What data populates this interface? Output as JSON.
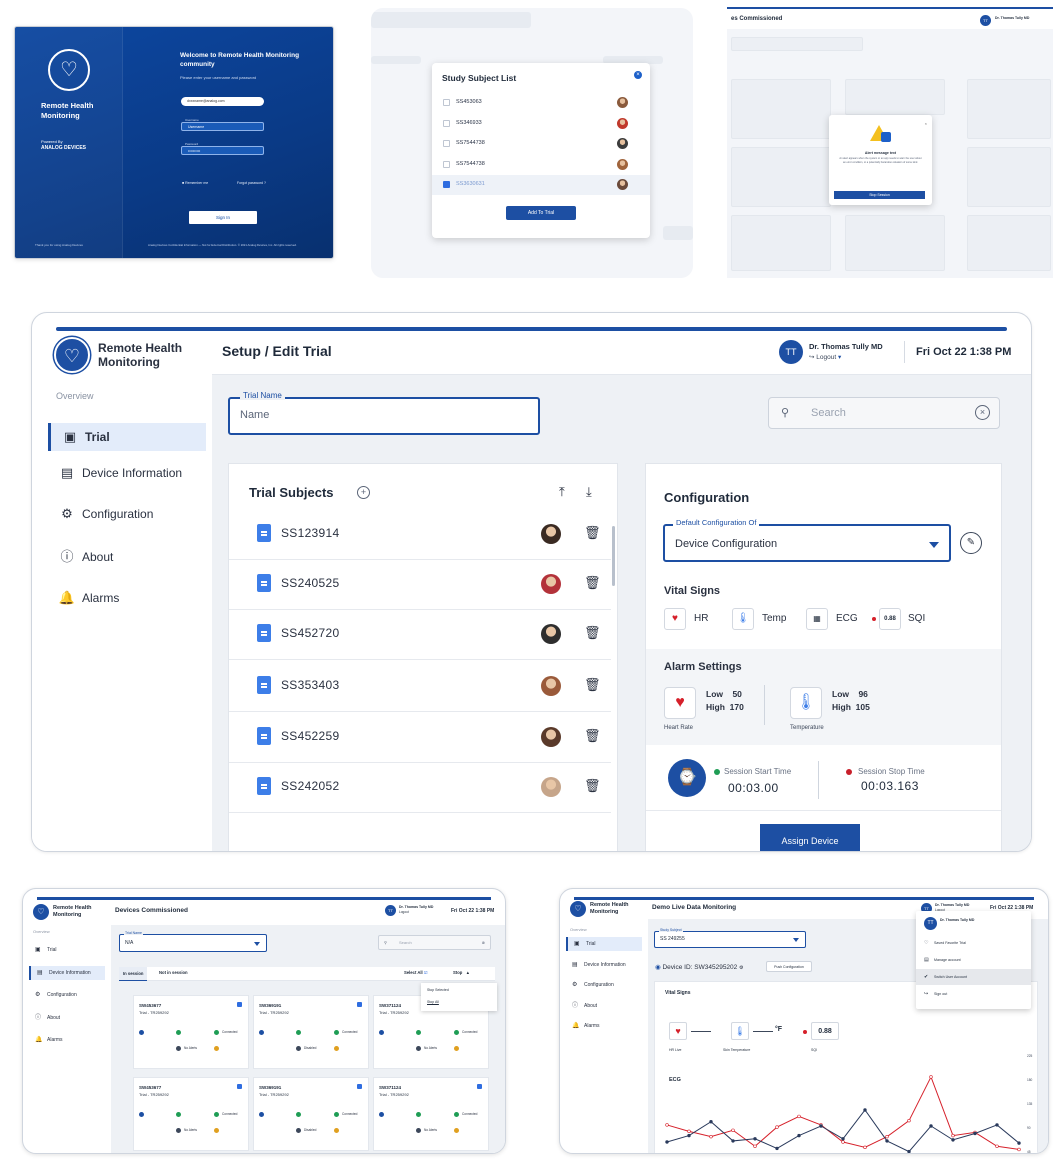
{
  "login": {
    "brand": "Remote Health Monitoring",
    "powered_by": "Powered By",
    "vendor": "ANALOG DEVICES",
    "welcome": "Welcome to Remote Health Monitoring community",
    "subtitle": "Please enter your username and password",
    "email_value": "dxxxname@analog.com",
    "username_label": "Username",
    "username_value": "Username",
    "password_label": "Password",
    "password_value": "••••••••••",
    "remember": "Remember me",
    "forgot": "Forgot password ?",
    "signin": "Sign In",
    "thanks": "Thank you for using Analog Devices",
    "footer": "Analog Devices Confidential Information — Not for External Distribution. © 2021 Analog Devices, Inc. All rights reserved."
  },
  "study_list": {
    "title": "Study Subject List",
    "rows": [
      {
        "id": "SS453063",
        "selected": false
      },
      {
        "id": "SS346933",
        "selected": false
      },
      {
        "id": "SS7544738",
        "selected": false
      },
      {
        "id": "SS7544738",
        "selected": false
      },
      {
        "id": "SS3630631",
        "selected": true
      }
    ],
    "add_button": "Add To Trial"
  },
  "alert_shot": {
    "title": "es Commissioned",
    "avatar": "TT",
    "user": "Dr. Thomas Tully MD",
    "alert_title": "Alert message text",
    "alert_text": "An alert appears when the system or an app needs to warn the user about an error condition, or a potentially hazardous situation of some kind.",
    "button": "Stop Session"
  },
  "main": {
    "brand": "Remote Health Monitoring",
    "overview": "Overview",
    "nav": [
      {
        "label": "Trial",
        "icon": "trial-icon",
        "active": true
      },
      {
        "label": "Device Information",
        "icon": "device-info-icon",
        "active": false
      },
      {
        "label": "Configuration",
        "icon": "configuration-icon",
        "active": false
      },
      {
        "label": "About",
        "icon": "about-icon",
        "active": false
      },
      {
        "label": "Alarms",
        "icon": "alarm-icon",
        "active": false
      }
    ],
    "page_title": "Setup / Edit Trial",
    "user": {
      "initials": "TT",
      "name": "Dr. Thomas Tully MD",
      "logout": "Logout"
    },
    "datetime": "Fri Oct 22  1:38 PM",
    "trial_name": {
      "label": "Trial Name",
      "value": "Name"
    },
    "search": {
      "placeholder": "Search"
    },
    "subjects": {
      "title": "Trial Subjects",
      "items": [
        "SS123914",
        "SS240525",
        "SS452720",
        "SS353403",
        "SS452259",
        "SS242052"
      ]
    },
    "config": {
      "title": "Configuration",
      "select_label": "Default Configuration Of",
      "select_value": "Device Configuration",
      "vital_title": "Vital Signs",
      "vitals": [
        {
          "label": "HR",
          "icon": "heart-icon"
        },
        {
          "label": "Temp",
          "icon": "thermometer-icon"
        },
        {
          "label": "ECG",
          "icon": "ecg-icon"
        },
        {
          "label": "SQI",
          "icon": "sqi-icon",
          "badge": "0.88"
        }
      ],
      "alarm_title": "Alarm Settings",
      "alarms": [
        {
          "caption": "Heart Rate",
          "low_label": "Low",
          "low": "50",
          "high_label": "High",
          "high": "170"
        },
        {
          "caption": "Temperature",
          "low_label": "Low",
          "low": "96",
          "high_label": "High",
          "high": "105"
        }
      ],
      "session_start_label": "Session Start Time",
      "session_start_value": "00:03.00",
      "session_stop_label": "Session Stop Time",
      "session_stop_value": "00:03.163",
      "assign_button": "Assign Device"
    }
  },
  "devices": {
    "brand": "Remote Health Monitoring",
    "title": "Devices Commissioned",
    "avatar": "TT",
    "user": "Dr. Thomas Tully MD",
    "logout": "Logout",
    "datetime": "Fri Oct 22  1:38 PM",
    "overview": "Overview",
    "nav": [
      "Trial",
      "Device Information",
      "Configuration",
      "About",
      "Alarms"
    ],
    "trial_label": "Trial Name",
    "trial_value": "N/A",
    "search": "Search",
    "tab_in": "In session",
    "tab_not": "Not in session",
    "select_all": "Select All",
    "stop": "Stop",
    "stop_selected": "Stop Selected",
    "stop_all": "Stop All",
    "cards": [
      {
        "id": "SW453677",
        "trial": "Trial - TR259292"
      },
      {
        "id": "SW369191",
        "trial": "Trial - TR259292"
      },
      {
        "id": "SW371124",
        "trial": "Trial - TR259292"
      },
      {
        "id": "SW453677",
        "trial": "Trial - TR259292"
      },
      {
        "id": "SW369191",
        "trial": "Trial - TR259292"
      },
      {
        "id": "SW371124",
        "trial": "Trial - TR259292"
      }
    ],
    "status": {
      "connected": "Connected",
      "no_alerts": "No Alerts",
      "disabled": "Disabled"
    }
  },
  "live": {
    "brand": "Remote Health Monitoring",
    "title": "Demo Live Data Monitoring",
    "avatar": "TT",
    "user": "Dr. Thomas Tully MD",
    "logout": "Logout",
    "datetime": "Fri Oct 22  1:38 PM",
    "overview": "Overview",
    "nav": [
      "Trial",
      "Device Information",
      "Configuration",
      "About",
      "Alarms"
    ],
    "subject_label": "Study Subject",
    "subject_value": "SS 249255",
    "device_id": "Device ID: SW345295202",
    "push": "Push Configuration",
    "vital_title": "Vital Signs",
    "hr_caption": "HR Live",
    "temp_caption": "Skin Temperature",
    "temp_unit": "°F",
    "sqi_value": "0.88",
    "sqi_caption": "SQI",
    "ecg_title": "ECG",
    "menu": [
      {
        "label": "Saved Favorite Trial",
        "icon": "heart-outline-icon"
      },
      {
        "label": "Manage account",
        "icon": "manage-icon"
      },
      {
        "label": "Switch User Account",
        "icon": "switch-user-icon"
      },
      {
        "label": "Sign out",
        "icon": "sign-out-icon"
      }
    ],
    "chart_data": {
      "type": "line",
      "title": "ECG",
      "y_ticks": [
        "225",
        "180",
        "135",
        "90",
        "45"
      ],
      "series": [
        {
          "color": "#d6202a",
          "values": [
            92,
            80,
            70,
            82,
            52,
            88,
            108,
            92,
            60,
            50,
            70,
            100,
            182,
            72,
            78,
            52,
            46
          ]
        },
        {
          "color": "#2a3a5c",
          "values": [
            60,
            72,
            98,
            62,
            66,
            48,
            72,
            90,
            66,
            120,
            62,
            42,
            90,
            64,
            76,
            92,
            58
          ]
        }
      ]
    }
  }
}
